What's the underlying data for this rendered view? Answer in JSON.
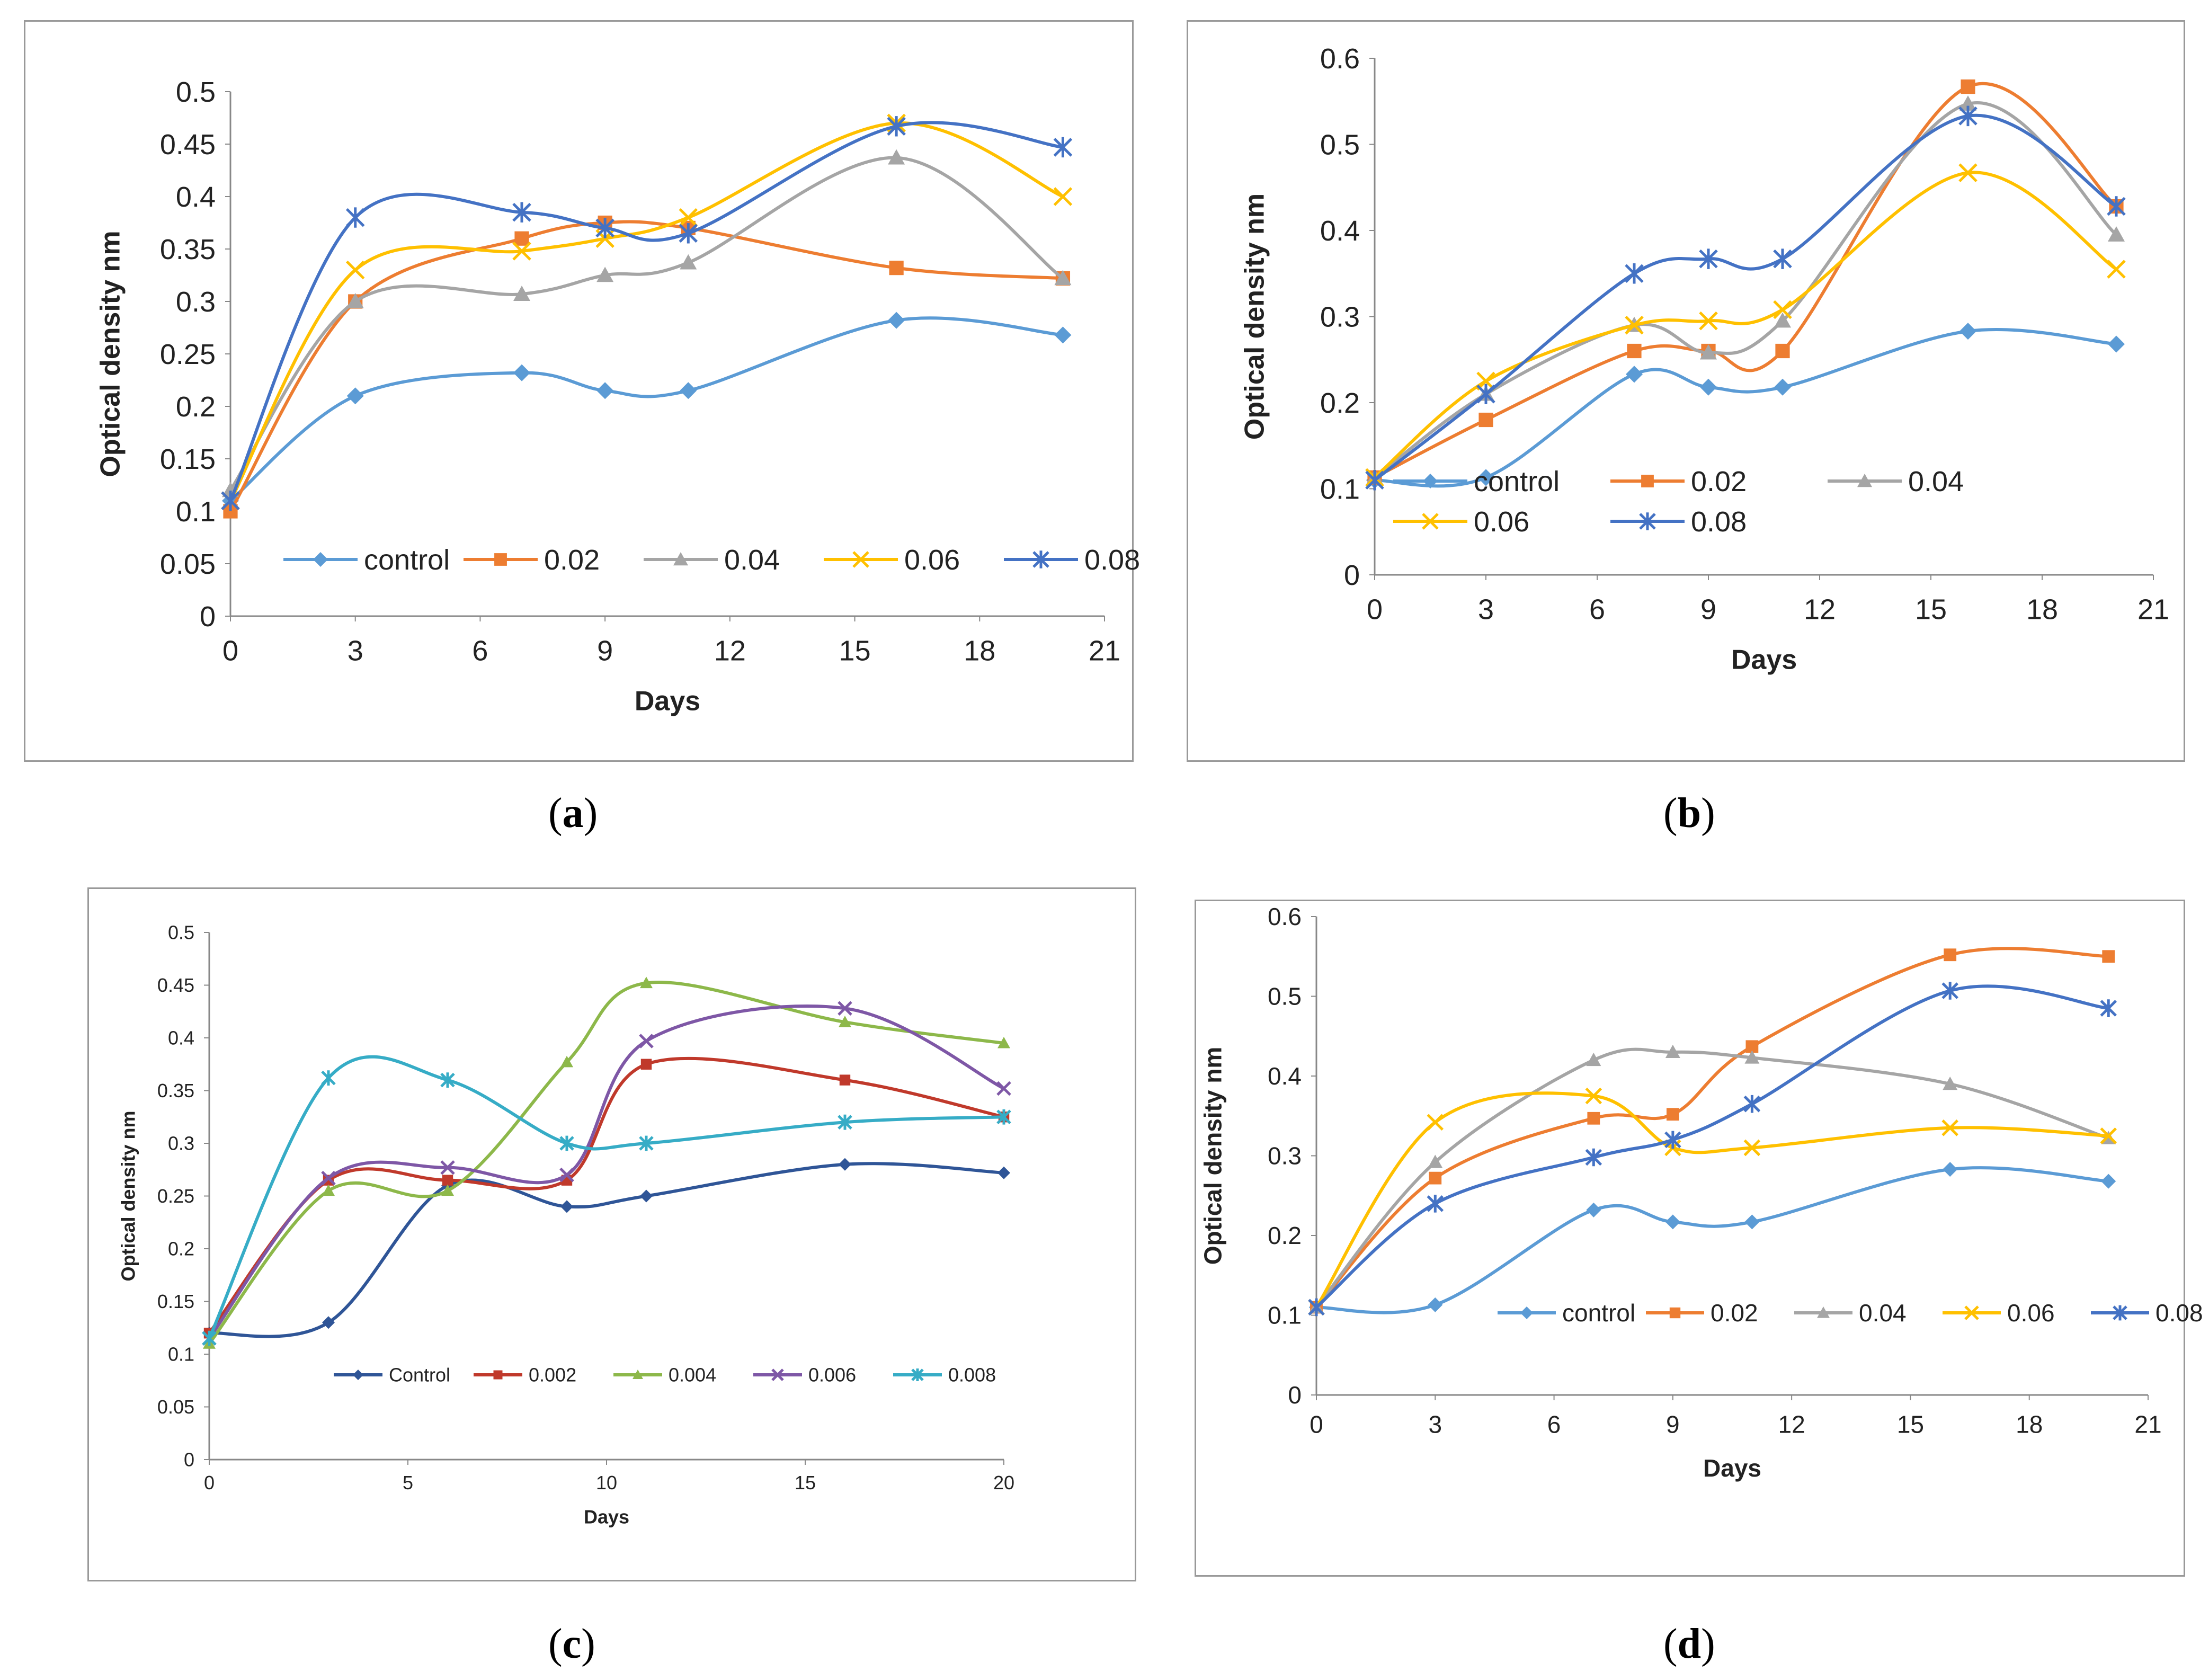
{
  "figure": {
    "panels": [
      {
        "caption_letter": "a"
      },
      {
        "caption_letter": "b"
      },
      {
        "caption_letter": "c"
      },
      {
        "caption_letter": "d"
      }
    ]
  },
  "chart_data": [
    {
      "type": "line",
      "panel": "a",
      "title": "",
      "xlabel": "Days",
      "ylabel": "Optical density nm",
      "xlim": [
        0,
        21
      ],
      "ylim": [
        0,
        0.5
      ],
      "x_ticks": [
        "0",
        "3",
        "6",
        "9",
        "12",
        "15",
        "18",
        "21"
      ],
      "y_ticks": [
        "0",
        "0.05",
        "0.1",
        "0.15",
        "0.2",
        "0.25",
        "0.3",
        "0.35",
        "0.4",
        "0.45",
        "0.5"
      ],
      "x": [
        0,
        3,
        7,
        9,
        11,
        16,
        20
      ],
      "series": [
        {
          "name": "control",
          "color": "#5B9BD5",
          "marker": "diamond",
          "values": [
            0.11,
            0.21,
            0.232,
            0.215,
            0.215,
            0.282,
            0.268
          ]
        },
        {
          "name": "0.02",
          "color": "#ED7D31",
          "marker": "square",
          "values": [
            0.1,
            0.3,
            0.36,
            0.375,
            0.37,
            0.332,
            0.322
          ]
        },
        {
          "name": "0.04",
          "color": "#A5A5A5",
          "marker": "triangle",
          "values": [
            0.12,
            0.3,
            0.307,
            0.325,
            0.337,
            0.437,
            0.322
          ]
        },
        {
          "name": "0.06",
          "color": "#FFC000",
          "marker": "x",
          "values": [
            0.11,
            0.33,
            0.348,
            0.36,
            0.38,
            0.47,
            0.4
          ]
        },
        {
          "name": "0.08",
          "color": "#4472C4",
          "marker": "star",
          "values": [
            0.11,
            0.38,
            0.385,
            0.37,
            0.365,
            0.467,
            0.447
          ]
        }
      ]
    },
    {
      "type": "line",
      "panel": "b",
      "title": "",
      "xlabel": "Days",
      "ylabel": "Optical density nm",
      "xlim": [
        0,
        21
      ],
      "ylim": [
        0,
        0.6
      ],
      "x_ticks": [
        "0",
        "3",
        "6",
        "9",
        "12",
        "15",
        "18",
        "21"
      ],
      "y_ticks": [
        "0",
        "0.1",
        "0.2",
        "0.3",
        "0.4",
        "0.5",
        "0.6"
      ],
      "x": [
        0,
        3,
        7,
        9,
        11,
        16,
        20
      ],
      "series": [
        {
          "name": "control",
          "color": "#5B9BD5",
          "marker": "diamond",
          "values": [
            0.11,
            0.113,
            0.233,
            0.218,
            0.218,
            0.283,
            0.268
          ]
        },
        {
          "name": "0.02",
          "color": "#ED7D31",
          "marker": "square",
          "values": [
            0.113,
            0.18,
            0.26,
            0.26,
            0.26,
            0.567,
            0.428
          ]
        },
        {
          "name": "0.04",
          "color": "#A5A5A5",
          "marker": "triangle",
          "values": [
            0.113,
            0.21,
            0.29,
            0.258,
            0.295,
            0.547,
            0.395
          ]
        },
        {
          "name": "0.06",
          "color": "#FFC000",
          "marker": "x",
          "values": [
            0.113,
            0.225,
            0.29,
            0.295,
            0.308,
            0.467,
            0.355
          ]
        },
        {
          "name": "0.08",
          "color": "#4472C4",
          "marker": "star",
          "values": [
            0.11,
            0.21,
            0.35,
            0.367,
            0.367,
            0.533,
            0.428
          ]
        }
      ]
    },
    {
      "type": "line",
      "panel": "c",
      "title": "",
      "xlabel": "Days",
      "ylabel": "Optical density nm",
      "xlim": [
        0,
        20
      ],
      "ylim": [
        0,
        0.5
      ],
      "x_ticks": [
        "0",
        "5",
        "10",
        "15",
        "20"
      ],
      "y_ticks": [
        "0",
        "0.05",
        "0.1",
        "0.15",
        "0.2",
        "0.25",
        "0.3",
        "0.35",
        "0.4",
        "0.45",
        "0.5"
      ],
      "x": [
        0,
        3,
        6,
        9,
        11,
        16,
        20
      ],
      "series": [
        {
          "name": "Control",
          "color": "#2F5597",
          "marker": "diamond",
          "values": [
            0.12,
            0.13,
            0.26,
            0.24,
            0.25,
            0.28,
            0.272
          ]
        },
        {
          "name": "0.002",
          "color": "#C0392B",
          "marker": "square",
          "values": [
            0.12,
            0.265,
            0.265,
            0.265,
            0.375,
            0.36,
            0.325
          ]
        },
        {
          "name": "0.004",
          "color": "#8DB84A",
          "marker": "triangle",
          "values": [
            0.11,
            0.255,
            0.255,
            0.377,
            0.452,
            0.415,
            0.395
          ]
        },
        {
          "name": "0.006",
          "color": "#7E57A6",
          "marker": "x",
          "values": [
            0.115,
            0.267,
            0.277,
            0.27,
            0.397,
            0.428,
            0.352
          ]
        },
        {
          "name": "0.008",
          "color": "#36ACC6",
          "marker": "star",
          "values": [
            0.115,
            0.362,
            0.36,
            0.3,
            0.3,
            0.32,
            0.325
          ]
        }
      ]
    },
    {
      "type": "line",
      "panel": "d",
      "title": "",
      "xlabel": "Days",
      "ylabel": "Optical density nm",
      "xlim": [
        0,
        21
      ],
      "ylim": [
        0,
        0.6
      ],
      "x_ticks": [
        "0",
        "3",
        "6",
        "9",
        "12",
        "15",
        "18",
        "21"
      ],
      "y_ticks": [
        "0",
        "0.1",
        "0.2",
        "0.3",
        "0.4",
        "0.5",
        "0.6"
      ],
      "x": [
        0,
        3,
        7,
        9,
        11,
        16,
        20
      ],
      "series": [
        {
          "name": "control",
          "color": "#5B9BD5",
          "marker": "diamond",
          "values": [
            0.11,
            0.113,
            0.232,
            0.217,
            0.217,
            0.283,
            0.268
          ]
        },
        {
          "name": "0.02",
          "color": "#ED7D31",
          "marker": "square",
          "values": [
            0.11,
            0.272,
            0.347,
            0.352,
            0.437,
            0.552,
            0.55
          ]
        },
        {
          "name": "0.04",
          "color": "#A5A5A5",
          "marker": "triangle",
          "values": [
            0.11,
            0.292,
            0.42,
            0.43,
            0.423,
            0.39,
            0.322
          ]
        },
        {
          "name": "0.06",
          "color": "#FFC000",
          "marker": "x",
          "values": [
            0.11,
            0.342,
            0.375,
            0.31,
            0.31,
            0.335,
            0.325
          ]
        },
        {
          "name": "0.08",
          "color": "#4472C4",
          "marker": "star",
          "values": [
            0.11,
            0.24,
            0.298,
            0.32,
            0.365,
            0.507,
            0.485
          ]
        }
      ]
    }
  ]
}
